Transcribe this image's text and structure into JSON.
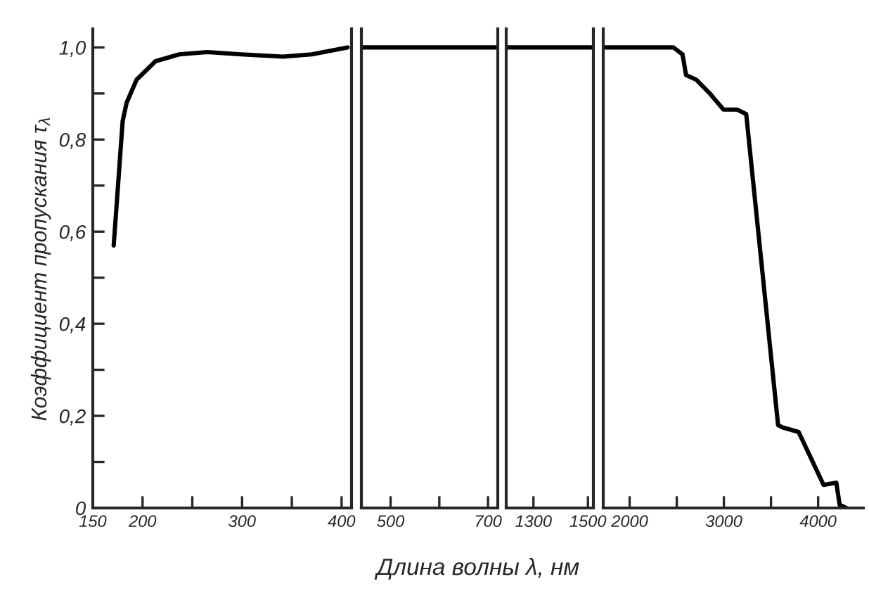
{
  "chart_data": [
    {
      "type": "line",
      "ylabel": "Коэффициент пропускания τ$_{λ}$",
      "xlim": [
        150,
        410
      ],
      "ylim": [
        0,
        1.04
      ],
      "xticks": [
        150,
        200,
        {
          "value": 250,
          "label": null
        },
        300,
        {
          "value": 350,
          "label": null
        },
        400
      ],
      "yticks": [
        {
          "value": 0,
          "label": "0"
        },
        {
          "value": 0.1,
          "label": null
        },
        {
          "value": 0.2,
          "label": "0,2"
        },
        {
          "value": 0.3,
          "label": null
        },
        {
          "value": 0.4,
          "label": "0,4"
        },
        {
          "value": 0.5,
          "label": null
        },
        {
          "value": 0.6,
          "label": "0,6"
        },
        {
          "value": 0.7,
          "label": null
        },
        {
          "value": 0.8,
          "label": "0,8"
        },
        {
          "value": 0.9,
          "label": null
        },
        {
          "value": 1.0,
          "label": "1,0"
        }
      ],
      "grid": false,
      "legend": false,
      "marker": "none",
      "line_style": "solid",
      "series": [
        {
          "color": "#000000",
          "x": [
            171,
            180,
            184,
            194,
            213,
            237,
            265,
            299,
            341,
            370,
            406
          ],
          "values": [
            0.57,
            0.84,
            0.88,
            0.93,
            0.97,
            0.985,
            0.99,
            0.985,
            0.98,
            0.985,
            1.0
          ]
        }
      ]
    },
    {
      "type": "line",
      "xlabel": "Длина волны λ, нм",
      "xlim": [
        440,
        720
      ],
      "ylim": [
        0,
        1.04
      ],
      "tick_labels": "x",
      "xticks": [
        500,
        {
          "value": 600,
          "label": null
        },
        700
      ],
      "grid": false,
      "legend": false,
      "marker": "none",
      "line_style": "solid",
      "series": [
        {
          "color": "#000000",
          "x": [
            440,
            720
          ],
          "values": [
            1.0,
            1.0
          ]
        }
      ]
    },
    {
      "type": "line",
      "xlim": [
        1200,
        1520
      ],
      "ylim": [
        0,
        1.04
      ],
      "tick_labels": "x",
      "xticks": [
        1300,
        1500
      ],
      "grid": false,
      "legend": false,
      "marker": "none",
      "line_style": "solid",
      "series": [
        {
          "color": "#000000",
          "x": [
            1200,
            1520
          ],
          "values": [
            1.0,
            1.0
          ]
        }
      ]
    },
    {
      "type": "line",
      "xlim": [
        1720,
        4480
      ],
      "ylim": [
        0,
        1.04
      ],
      "tick_labels": "x",
      "xticks": [
        2000,
        {
          "value": 2500,
          "label": null
        },
        3000,
        {
          "value": 3500,
          "label": null
        },
        4000
      ],
      "grid": false,
      "legend": false,
      "marker": "none",
      "line_style": "solid",
      "series": [
        {
          "color": "#000000",
          "x": [
            1720,
            2464,
            2561,
            2599,
            2706,
            2851,
            2996,
            3141,
            3237,
            3575,
            3623,
            3793,
            4058,
            4193,
            4228,
            4300
          ],
          "values": [
            1.0,
            1.0,
            0.985,
            0.94,
            0.93,
            0.9,
            0.865,
            0.865,
            0.855,
            0.18,
            0.175,
            0.165,
            0.05,
            0.055,
            0.007,
            0.0
          ]
        }
      ]
    }
  ]
}
